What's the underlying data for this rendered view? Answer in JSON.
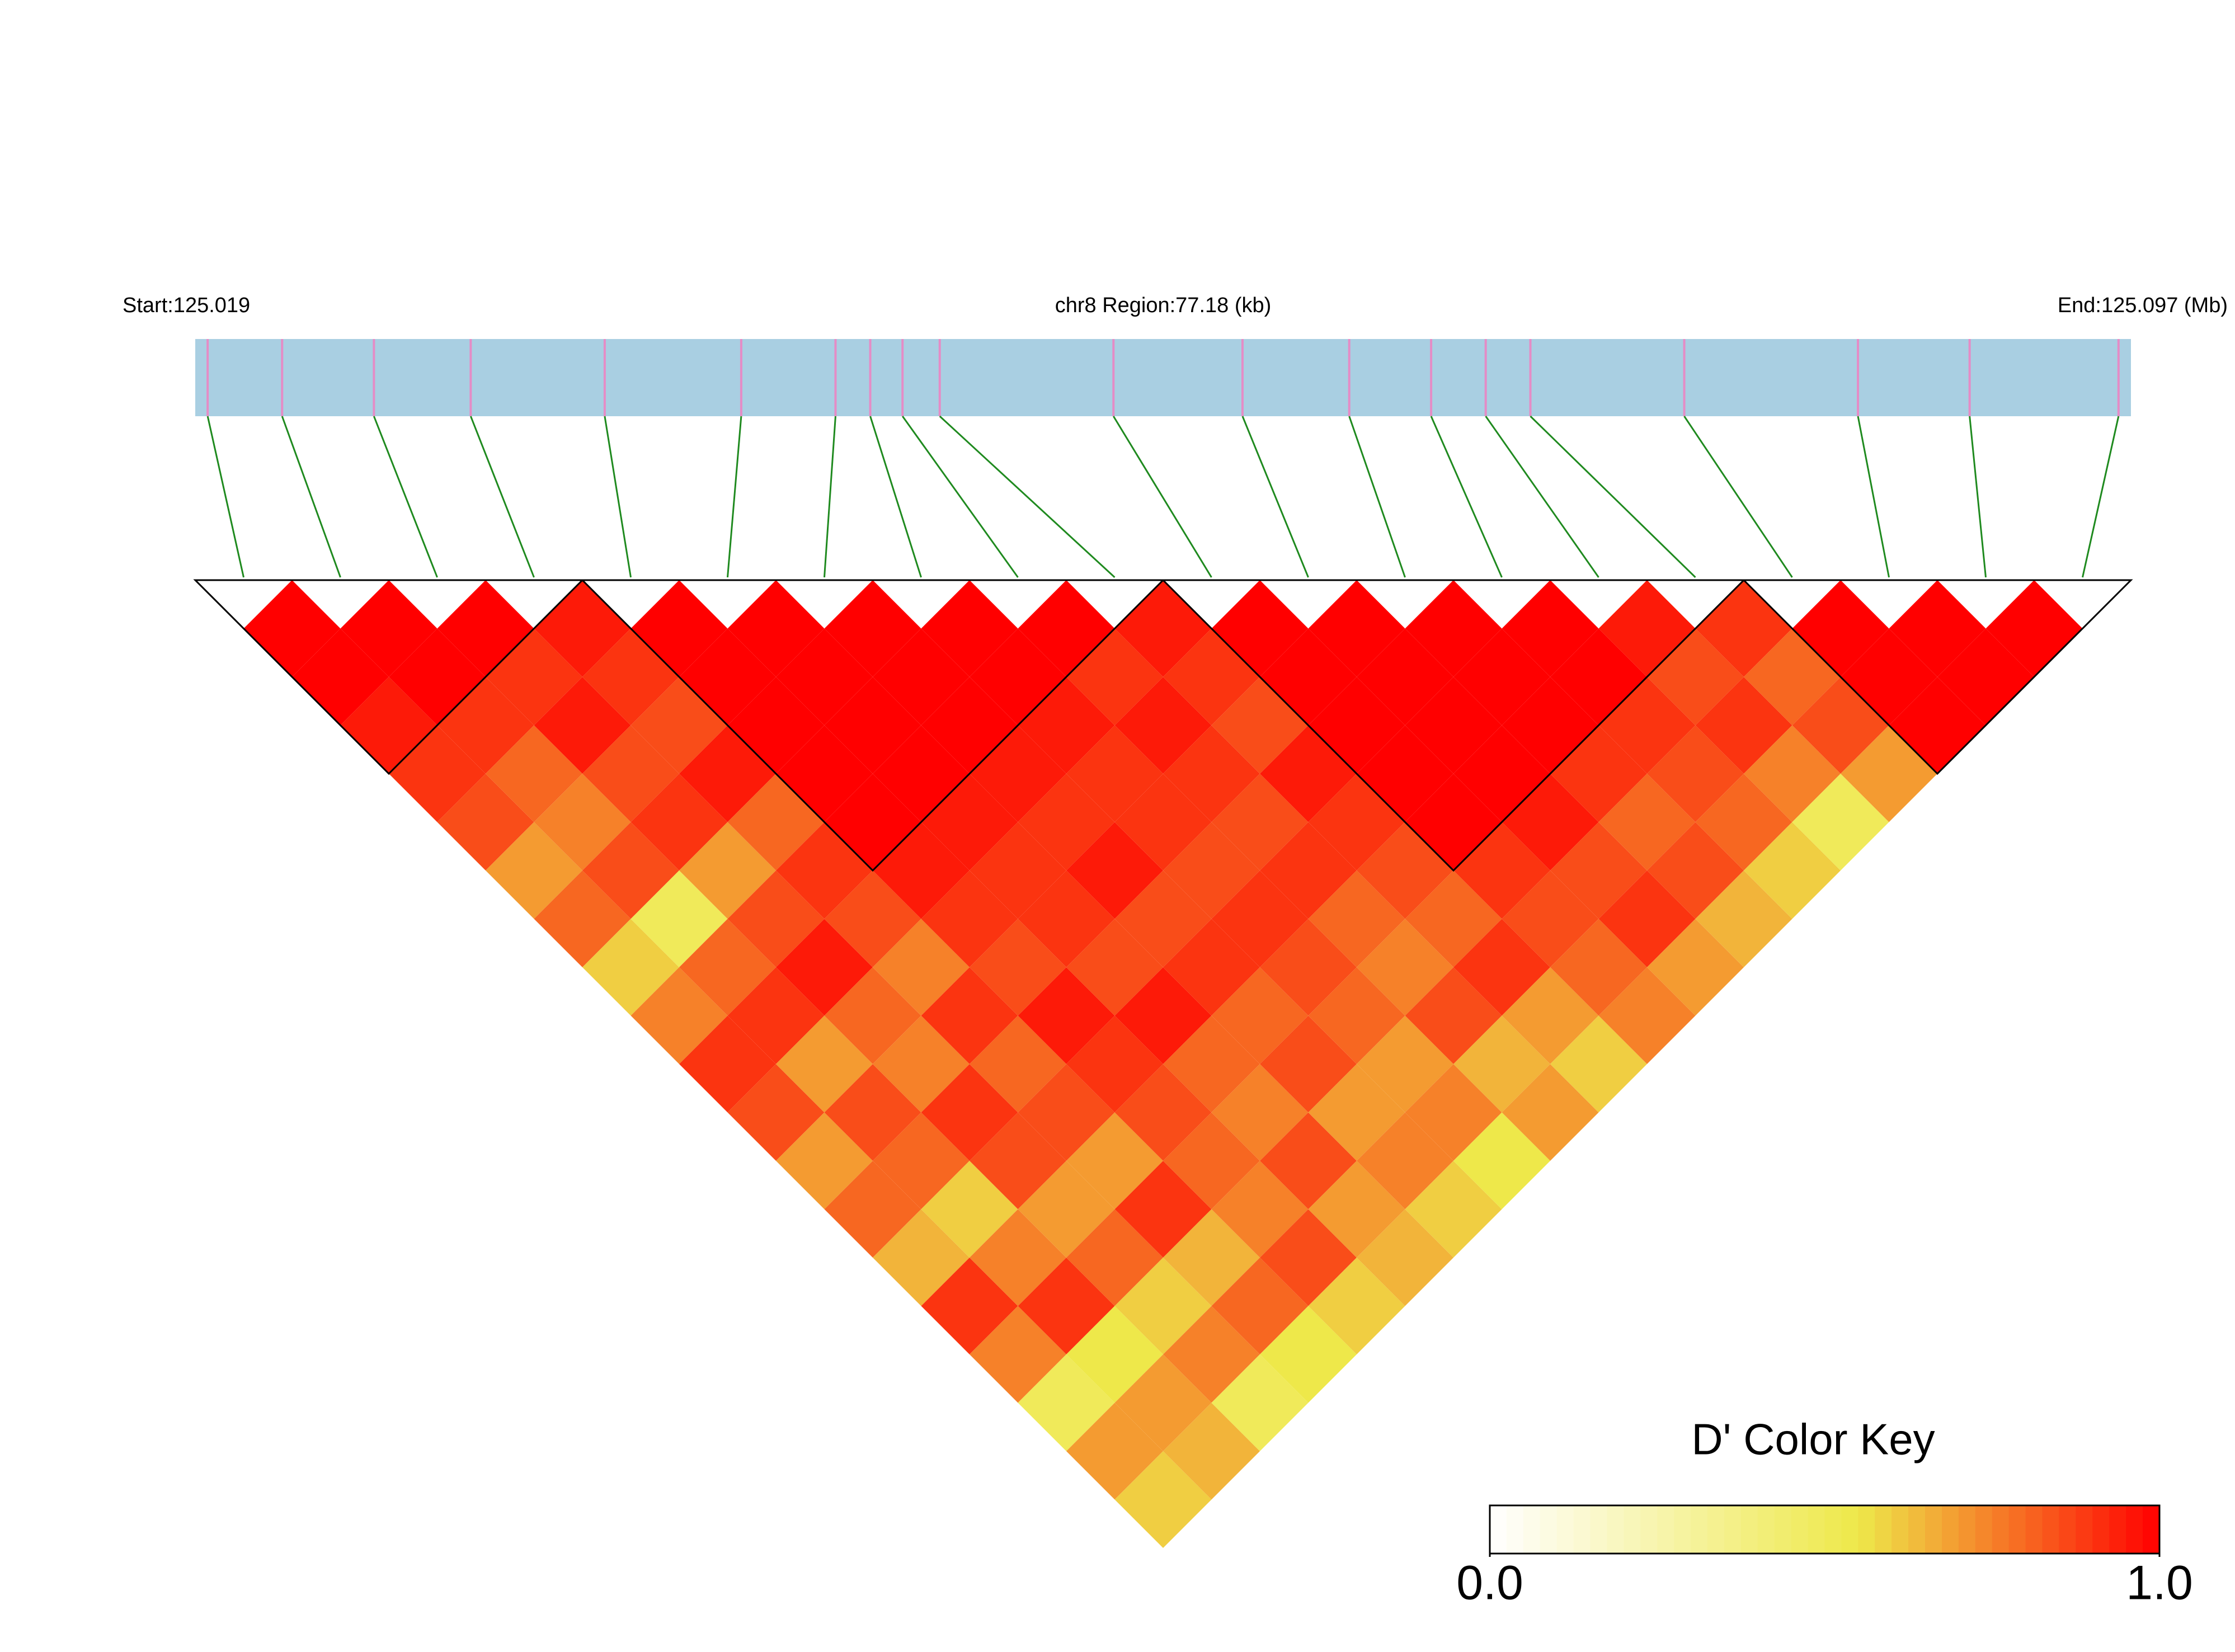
{
  "chart_data": {
    "type": "ld-heatmap",
    "start_label": "Start:125.019",
    "region_label": "chr8 Region:77.18 (kb)",
    "end_label": "End:125.097 (Mb)",
    "color_key_title": "D' Color Key",
    "xlim": [
      125.019,
      125.097
    ],
    "positions": [
      125.0195,
      125.0225,
      125.0262,
      125.0301,
      125.0355,
      125.041,
      125.0448,
      125.0462,
      125.0475,
      125.049,
      125.056,
      125.0612,
      125.0655,
      125.0688,
      125.071,
      125.0728,
      125.079,
      125.086,
      125.0905,
      125.0965
    ],
    "dprime": [
      [
        1,
        1,
        0.95,
        0.9,
        0.85,
        0.7,
        0.8,
        0.6,
        0.75,
        0.9,
        0.85,
        0.7,
        0.8,
        0.65,
        0.9,
        0.75,
        0.5,
        0.7,
        0.6
      ],
      [
        1,
        1,
        0.9,
        0.8,
        0.75,
        0.85,
        0.5,
        0.8,
        0.9,
        0.7,
        0.85,
        0.8,
        0.6,
        0.75,
        0.9,
        0.55,
        0.7,
        0.65
      ],
      [
        1,
        0.9,
        0.95,
        0.85,
        0.9,
        0.7,
        0.85,
        0.95,
        0.8,
        0.75,
        0.9,
        0.85,
        0.7,
        0.8,
        0.6,
        0.75,
        0.5
      ],
      [
        0.95,
        0.9,
        0.85,
        0.95,
        0.8,
        0.9,
        0.85,
        0.75,
        0.9,
        0.8,
        0.85,
        0.7,
        0.9,
        0.65,
        0.8,
        0.55
      ],
      [
        1,
        1,
        1,
        1,
        1,
        0.95,
        0.9,
        0.85,
        0.95,
        0.9,
        0.85,
        0.8,
        0.75,
        0.85,
        0.6
      ],
      [
        1,
        1,
        1,
        1,
        0.95,
        0.9,
        0.9,
        0.85,
        0.95,
        0.8,
        0.75,
        0.85,
        0.7,
        0.65
      ],
      [
        1,
        1,
        1,
        0.95,
        0.9,
        0.95,
        0.85,
        0.9,
        0.8,
        0.85,
        0.7,
        0.75,
        0.6
      ],
      [
        1,
        1,
        0.95,
        0.9,
        0.9,
        0.85,
        0.9,
        0.85,
        0.8,
        0.7,
        0.75,
        0.55
      ],
      [
        1,
        0.9,
        0.95,
        0.9,
        0.85,
        0.9,
        0.8,
        0.75,
        0.85,
        0.65,
        0.7
      ],
      [
        0.95,
        0.9,
        0.85,
        0.95,
        0.9,
        0.85,
        0.8,
        0.9,
        0.7,
        0.6
      ],
      [
        1,
        1,
        1,
        1,
        1,
        0.9,
        0.85,
        0.8,
        0.75
      ],
      [
        1,
        1,
        1,
        1,
        0.95,
        0.85,
        0.9,
        0.7
      ],
      [
        1,
        1,
        1,
        0.9,
        0.8,
        0.85,
        0.65
      ],
      [
        1,
        1,
        0.9,
        0.85,
        0.8,
        0.6
      ],
      [
        0.95,
        0.85,
        0.9,
        0.75,
        0.5
      ],
      [
        0.9,
        0.8,
        0.85,
        0.7
      ],
      [
        1,
        1,
        1
      ],
      [
        1,
        1
      ],
      [
        1
      ]
    ],
    "blocks": [
      [
        0,
        3
      ],
      [
        4,
        9
      ],
      [
        10,
        15
      ],
      [
        16,
        19
      ]
    ],
    "bar_color": "#a9cfe2",
    "marker_color": "#e58cc6",
    "link_color": "#1f8a1f",
    "block_color": "#000000",
    "colorscale": [
      [
        0,
        "#ffffff"
      ],
      [
        0.55,
        "#eee84a"
      ],
      [
        1,
        "#ff0000"
      ]
    ],
    "clim": [
      0,
      1
    ],
    "cticks": [
      {
        "value": 0,
        "label": "0.0"
      },
      {
        "value": 1,
        "label": "1.0"
      }
    ]
  }
}
